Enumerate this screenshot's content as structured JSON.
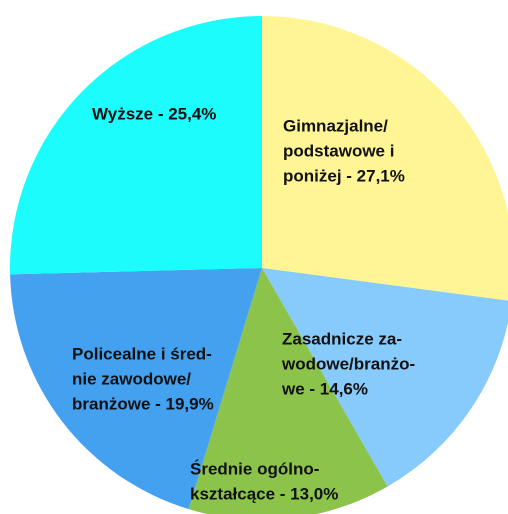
{
  "chart_data": {
    "type": "pie",
    "values": [
      27.1,
      14.6,
      13.0,
      19.9,
      25.4
    ],
    "value_labels": [
      [
        "Gimnazjalne/",
        "podstawowe i",
        "poniżej - 27,1%"
      ],
      [
        "Zasadnicze za-",
        "wodowe/branżo-",
        "we - 14,6%"
      ],
      [
        "Średnie ogólno-",
        "kształcące - 13,0%"
      ],
      [
        "Policealne i śred-",
        "nie zawodowe/",
        "branżowe - 19,9%"
      ],
      [
        "Wyższe - 25,4%"
      ]
    ],
    "colors": [
      "#fff595",
      "#87cafc",
      "#8cc34b",
      "#43a1f0",
      "#1bfdfd"
    ]
  }
}
